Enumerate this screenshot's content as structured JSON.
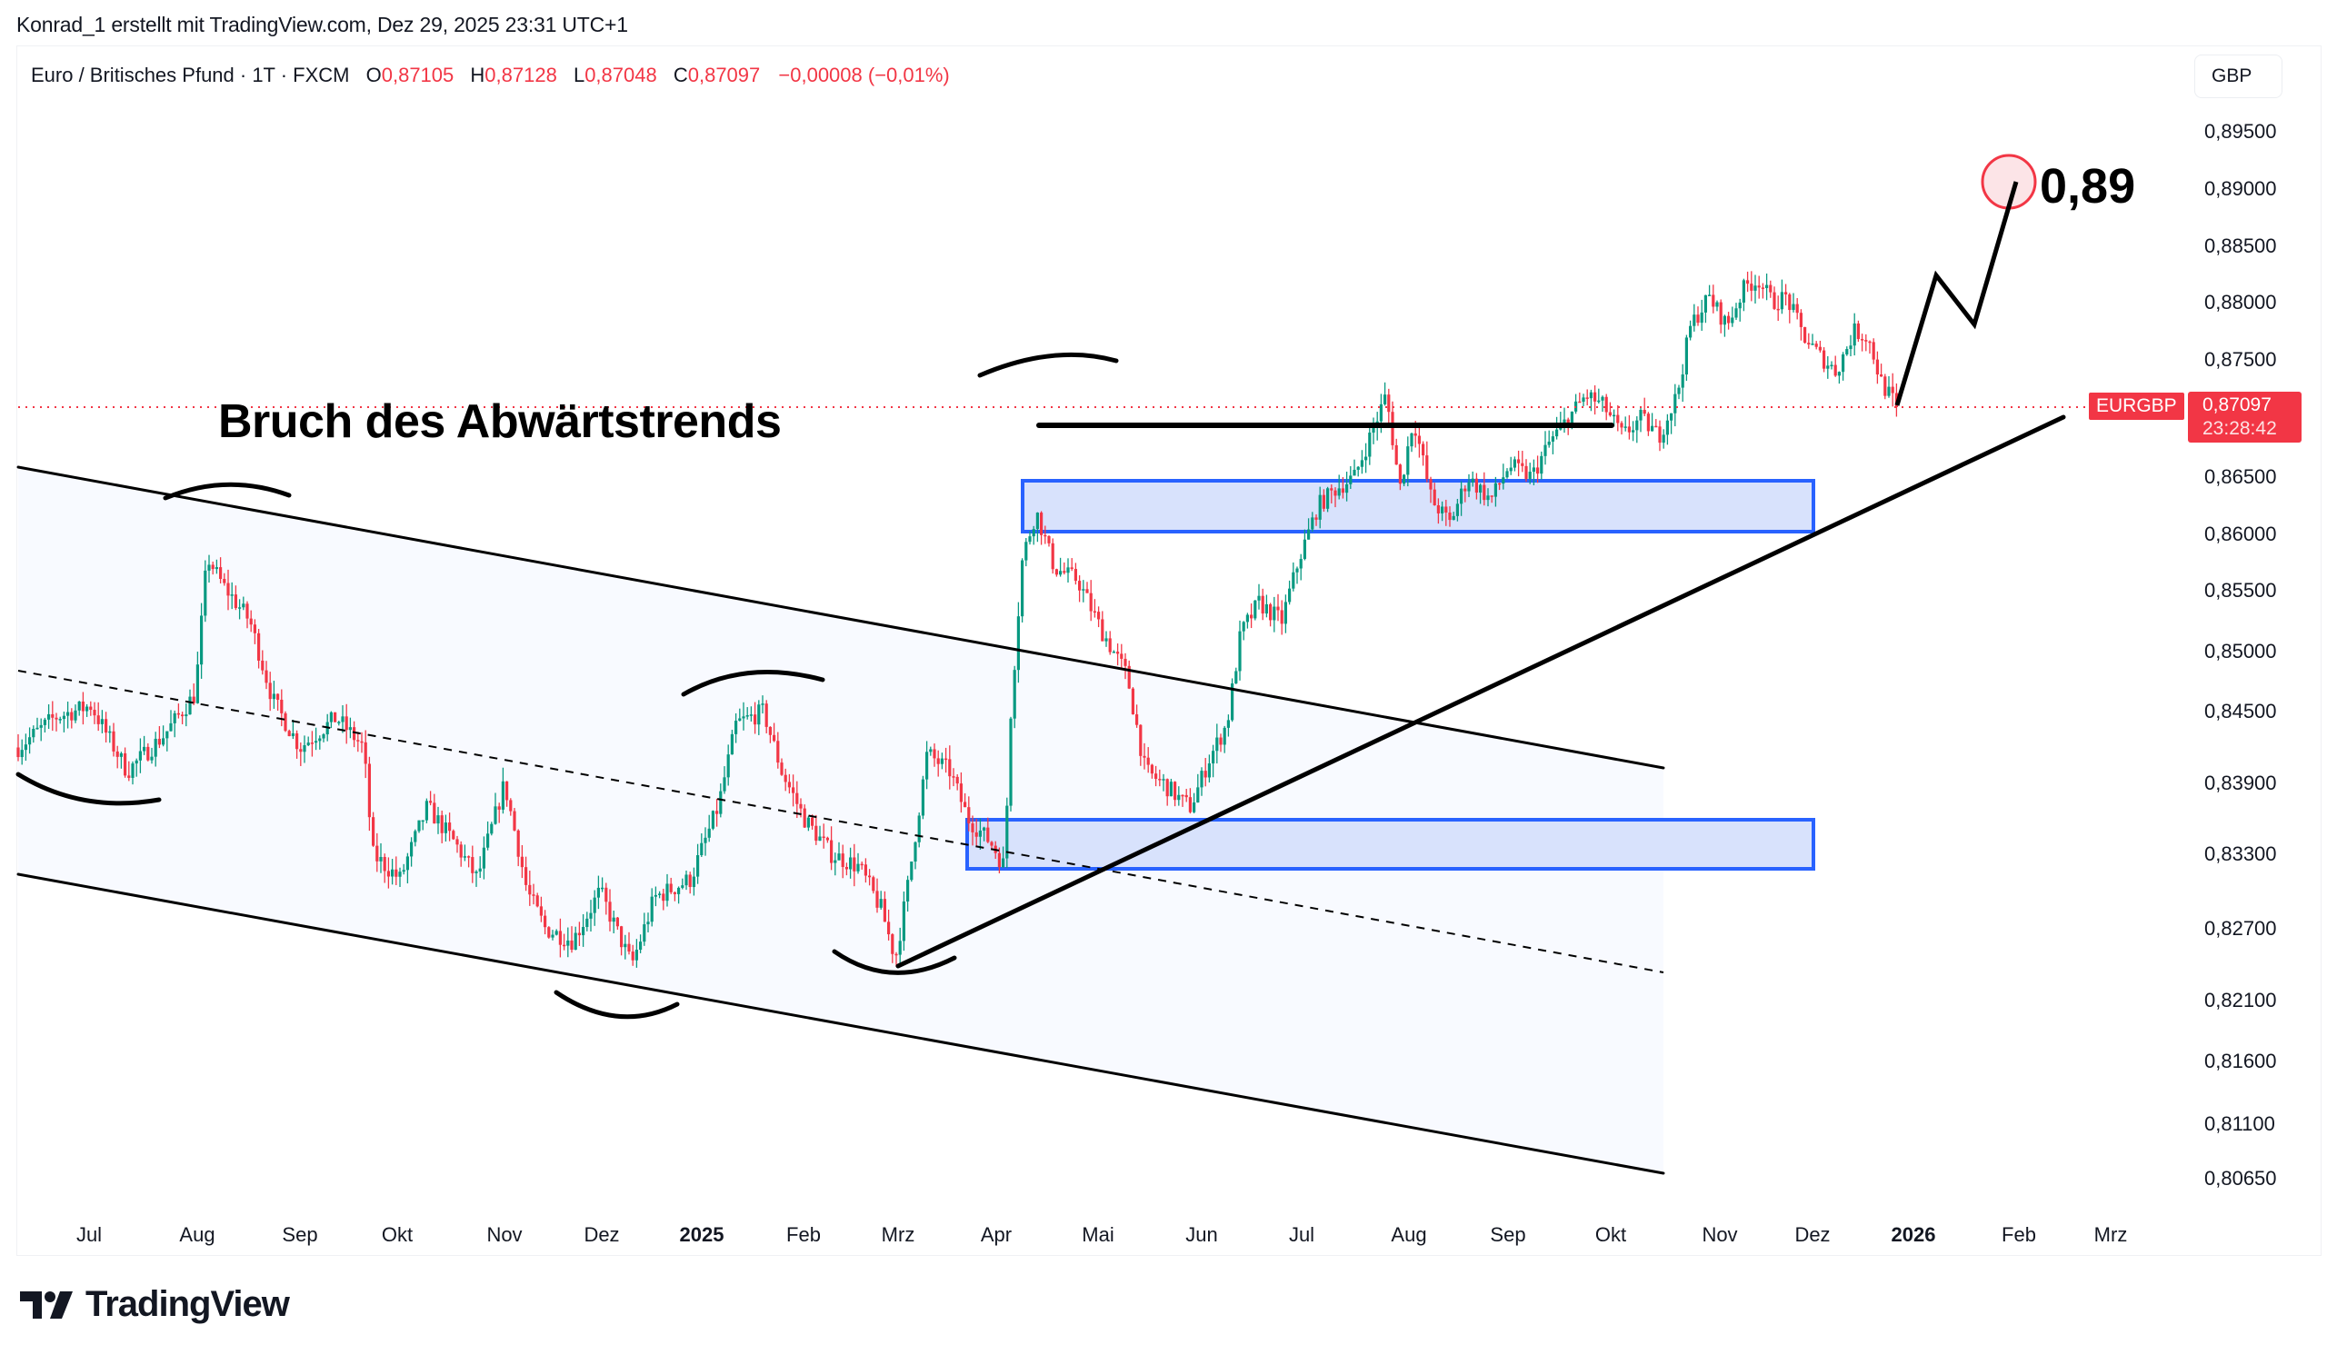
{
  "attribution": "Konrad_1 erstellt mit TradingView.com, Dez 29, 2025 23:31 UTC+1",
  "legend": {
    "symbol": "Euro / Britisches Pfund · 1T · FXCM",
    "open_label": "O",
    "open": "0,87105",
    "high_label": "H",
    "high": "0,87128",
    "low_label": "L",
    "low": "0,87048",
    "close_label": "C",
    "close": "0,87097",
    "change": "−0,00008 (−0,01%)"
  },
  "currency_button": "GBP",
  "price_tag": {
    "symbol": "EURGBP",
    "price": "0,87097",
    "countdown": "23:28:42"
  },
  "annotations": {
    "title": "Bruch des Abwärtstrends",
    "target": "0,89"
  },
  "logo": {
    "text": "TradingView"
  },
  "colors": {
    "up": "#089981",
    "down": "#F23645",
    "zone_fill": "#D6E0FC",
    "zone_border": "#2962FF",
    "channel_fill": "#F8FAFF",
    "price_line": "#F23645"
  },
  "chart_data": {
    "type": "candlestick",
    "title": "Euro / Britisches Pfund · 1T · FXCM",
    "xlabel": "",
    "ylabel": "GBP",
    "x_ticks": [
      {
        "label": "Jul",
        "x": 98
      },
      {
        "label": "Aug",
        "x": 217
      },
      {
        "label": "Sep",
        "x": 330
      },
      {
        "label": "Okt",
        "x": 437
      },
      {
        "label": "Nov",
        "x": 555
      },
      {
        "label": "Dez",
        "x": 662
      },
      {
        "label": "2025",
        "x": 772,
        "year": true
      },
      {
        "label": "Feb",
        "x": 884
      },
      {
        "label": "Mrz",
        "x": 988
      },
      {
        "label": "Apr",
        "x": 1096
      },
      {
        "label": "Mai",
        "x": 1208
      },
      {
        "label": "Jun",
        "x": 1322
      },
      {
        "label": "Jul",
        "x": 1432
      },
      {
        "label": "Aug",
        "x": 1550
      },
      {
        "label": "Sep",
        "x": 1659
      },
      {
        "label": "Okt",
        "x": 1772
      },
      {
        "label": "Nov",
        "x": 1892
      },
      {
        "label": "Dez",
        "x": 1994
      },
      {
        "label": "2026",
        "x": 2105,
        "year": true
      },
      {
        "label": "Feb",
        "x": 2221
      },
      {
        "label": "Mrz",
        "x": 2322
      }
    ],
    "y_ticks": [
      {
        "label": "0,89500",
        "value": 0.895,
        "y": 145
      },
      {
        "label": "0,89000",
        "value": 0.89,
        "y": 208
      },
      {
        "label": "0,88500",
        "value": 0.885,
        "y": 271
      },
      {
        "label": "0,88000",
        "value": 0.88,
        "y": 333
      },
      {
        "label": "0,87500",
        "value": 0.875,
        "y": 396
      },
      {
        "label": "0,86500",
        "value": 0.865,
        "y": 525
      },
      {
        "label": "0,86000",
        "value": 0.86,
        "y": 588
      },
      {
        "label": "0,85500",
        "value": 0.855,
        "y": 650
      },
      {
        "label": "0,85000",
        "value": 0.85,
        "y": 717
      },
      {
        "label": "0,84500",
        "value": 0.845,
        "y": 783
      },
      {
        "label": "0,83900",
        "value": 0.839,
        "y": 862
      },
      {
        "label": "0,83300",
        "value": 0.833,
        "y": 940
      },
      {
        "label": "0,82700",
        "value": 0.827,
        "y": 1022
      },
      {
        "label": "0,82100",
        "value": 0.821,
        "y": 1101
      },
      {
        "label": "0,81600",
        "value": 0.816,
        "y": 1168
      },
      {
        "label": "0,81100",
        "value": 0.811,
        "y": 1237
      },
      {
        "label": "0,80650",
        "value": 0.8065,
        "y": 1297
      }
    ],
    "ylim": [
      0.803,
      0.899
    ],
    "last_price": 0.87097,
    "price_path": [
      [
        20,
        0.842
      ],
      [
        60,
        0.8445
      ],
      [
        100,
        0.8455
      ],
      [
        140,
        0.84
      ],
      [
        180,
        0.843
      ],
      [
        215,
        0.8465
      ],
      [
        228,
        0.858
      ],
      [
        245,
        0.8555
      ],
      [
        275,
        0.8525
      ],
      [
        300,
        0.846
      ],
      [
        330,
        0.842
      ],
      [
        370,
        0.8445
      ],
      [
        400,
        0.842
      ],
      [
        410,
        0.833
      ],
      [
        440,
        0.831
      ],
      [
        470,
        0.837
      ],
      [
        500,
        0.834
      ],
      [
        525,
        0.831
      ],
      [
        555,
        0.839
      ],
      [
        580,
        0.83
      ],
      [
        600,
        0.827
      ],
      [
        630,
        0.826
      ],
      [
        660,
        0.83
      ],
      [
        695,
        0.824
      ],
      [
        720,
        0.8295
      ],
      [
        760,
        0.831
      ],
      [
        790,
        0.837
      ],
      [
        810,
        0.844
      ],
      [
        840,
        0.845
      ],
      [
        860,
        0.84
      ],
      [
        885,
        0.836
      ],
      [
        915,
        0.833
      ],
      [
        945,
        0.832
      ],
      [
        970,
        0.8285
      ],
      [
        985,
        0.8245
      ],
      [
        1000,
        0.831
      ],
      [
        1020,
        0.8415
      ],
      [
        1045,
        0.84
      ],
      [
        1065,
        0.836
      ],
      [
        1090,
        0.834
      ],
      [
        1105,
        0.832
      ],
      [
        1112,
        0.845
      ],
      [
        1125,
        0.858
      ],
      [
        1140,
        0.862
      ],
      [
        1160,
        0.857
      ],
      [
        1185,
        0.856
      ],
      [
        1210,
        0.852
      ],
      [
        1240,
        0.848
      ],
      [
        1260,
        0.84
      ],
      [
        1280,
        0.839
      ],
      [
        1300,
        0.8375
      ],
      [
        1310,
        0.837
      ],
      [
        1330,
        0.841
      ],
      [
        1350,
        0.844
      ],
      [
        1365,
        0.8515
      ],
      [
        1385,
        0.854
      ],
      [
        1410,
        0.8525
      ],
      [
        1430,
        0.858
      ],
      [
        1450,
        0.8625
      ],
      [
        1470,
        0.864
      ],
      [
        1490,
        0.865
      ],
      [
        1510,
        0.869
      ],
      [
        1525,
        0.872
      ],
      [
        1540,
        0.864
      ],
      [
        1555,
        0.87
      ],
      [
        1575,
        0.863
      ],
      [
        1595,
        0.861
      ],
      [
        1615,
        0.865
      ],
      [
        1640,
        0.863
      ],
      [
        1660,
        0.866
      ],
      [
        1685,
        0.865
      ],
      [
        1705,
        0.868
      ],
      [
        1725,
        0.87
      ],
      [
        1745,
        0.872
      ],
      [
        1765,
        0.871
      ],
      [
        1785,
        0.8685
      ],
      [
        1805,
        0.87
      ],
      [
        1825,
        0.8685
      ],
      [
        1845,
        0.872
      ],
      [
        1860,
        0.878
      ],
      [
        1880,
        0.8805
      ],
      [
        1900,
        0.878
      ],
      [
        1920,
        0.8815
      ],
      [
        1935,
        0.882
      ],
      [
        1950,
        0.88
      ],
      [
        1965,
        0.8805
      ],
      [
        1985,
        0.877
      ],
      [
        2000,
        0.8755
      ],
      [
        2020,
        0.874
      ],
      [
        2040,
        0.8775
      ],
      [
        2055,
        0.877
      ],
      [
        2070,
        0.873
      ],
      [
        2087,
        0.871
      ]
    ],
    "drawings": {
      "channel_upper": [
        [
          20,
          514
        ],
        [
          1830,
          845
        ]
      ],
      "channel_mid": [
        [
          20,
          738
        ],
        [
          1830,
          1070
        ]
      ],
      "channel_lower": [
        [
          20,
          962
        ],
        [
          1830,
          1291
        ]
      ],
      "support_trendline": [
        [
          988,
          1063
        ],
        [
          2270,
          459
        ]
      ],
      "resistance_line": [
        [
          1143,
          468
        ],
        [
          1773,
          468
        ]
      ],
      "zone_upper": {
        "x1": 1125,
        "y1": 529,
        "x2": 1995,
        "y2": 585
      },
      "zone_lower": {
        "x1": 1064,
        "y1": 902,
        "x2": 1995,
        "y2": 956
      },
      "projection": [
        [
          2087,
          446
        ],
        [
          2130,
          303
        ],
        [
          2172,
          357
        ],
        [
          2218,
          200
        ]
      ],
      "target_circle": {
        "cx": 2210,
        "cy": 200,
        "r": 29
      }
    }
  }
}
